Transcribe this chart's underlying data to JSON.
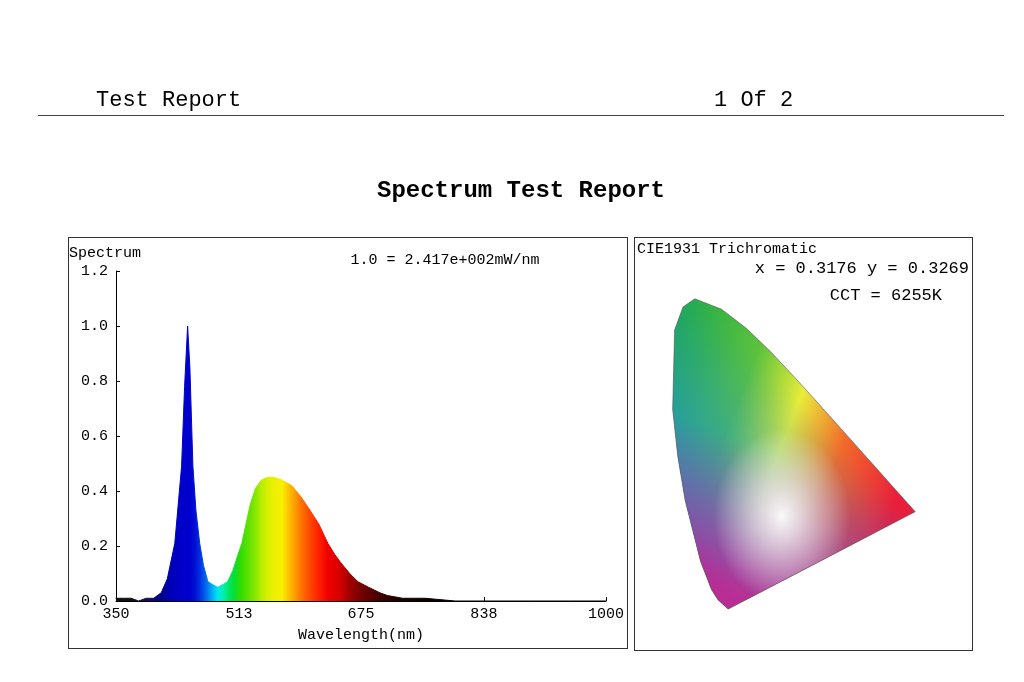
{
  "chart_data": [
    {
      "type": "area",
      "title": "Spectrum Test Report",
      "ylabel": "Spectrum",
      "xlabel": "Wavelength(nm)",
      "annotations": [
        "Test Report",
        "1 Of 2",
        "1.0 = 2.417e+002mW/nm"
      ],
      "x": [
        350,
        360,
        370,
        380,
        390,
        400,
        410,
        418,
        428,
        437,
        441,
        445,
        448,
        452,
        456,
        461,
        466,
        472,
        478,
        485,
        492,
        498,
        505,
        512,
        517,
        528,
        535,
        543,
        551,
        560,
        570,
        583,
        595,
        605,
        619,
        631,
        640,
        648,
        660,
        671,
        685,
        700,
        710,
        730,
        760,
        800,
        850,
        900,
        950,
        1000
      ],
      "values": [
        0.01,
        0.01,
        0.01,
        0.0,
        0.01,
        0.01,
        0.03,
        0.08,
        0.21,
        0.49,
        0.78,
        1.0,
        0.85,
        0.49,
        0.33,
        0.21,
        0.13,
        0.07,
        0.06,
        0.05,
        0.06,
        0.07,
        0.11,
        0.17,
        0.21,
        0.35,
        0.41,
        0.44,
        0.45,
        0.45,
        0.44,
        0.42,
        0.38,
        0.34,
        0.28,
        0.21,
        0.17,
        0.14,
        0.1,
        0.07,
        0.05,
        0.03,
        0.02,
        0.01,
        0.01,
        0.0,
        0.0,
        0.0,
        0.0,
        0.0
      ],
      "colors": [
        "#101010",
        "#101010",
        "#101010",
        "#101030",
        "#101050",
        "#0a0a70",
        "#00008c",
        "#0000a8",
        "#0000c0",
        "#0000c8",
        "#0000cc",
        "#0000cc",
        "#0000cc",
        "#0008d0",
        "#0014d6",
        "#0030e0",
        "#0050ea",
        "#0080f0",
        "#00b0f4",
        "#00e8f0",
        "#00f0b0",
        "#00e870",
        "#00e040",
        "#20dc10",
        "#38de00",
        "#68e200",
        "#88e800",
        "#b8ee00",
        "#d8f000",
        "#ecf000",
        "#f8f000",
        "#ffb000",
        "#ff7800",
        "#ff5000",
        "#ff2000",
        "#f00000",
        "#e40000",
        "#d00000",
        "#a00000",
        "#800000",
        "#600000",
        "#400000",
        "#300000",
        "#180000",
        "#100000",
        "#000000",
        "#000000",
        "#000000",
        "#000000",
        "#000000"
      ],
      "xlim": [
        350,
        1000
      ],
      "xticks": [
        350,
        513,
        675,
        838,
        1000
      ],
      "ylim": [
        0,
        1.2
      ],
      "yticks": [
        {
          "value": 0,
          "label": "0.0"
        },
        {
          "value": 0.2,
          "label": "0.2"
        },
        {
          "value": 0.4,
          "label": "0.4"
        },
        {
          "value": 0.6,
          "label": "0.6"
        },
        {
          "value": 0.8,
          "label": "0.8"
        },
        {
          "value": 1.0,
          "label": "1.0"
        },
        {
          "value": 1.2,
          "label": "1.2"
        }
      ],
      "grid": false,
      "marker": "none"
    },
    {
      "type": "other",
      "title": "CIE1931 Trichromatic",
      "annotations": [
        "x = 0.3176 y = 0.3269",
        "CCT = 6255K"
      ]
    }
  ]
}
